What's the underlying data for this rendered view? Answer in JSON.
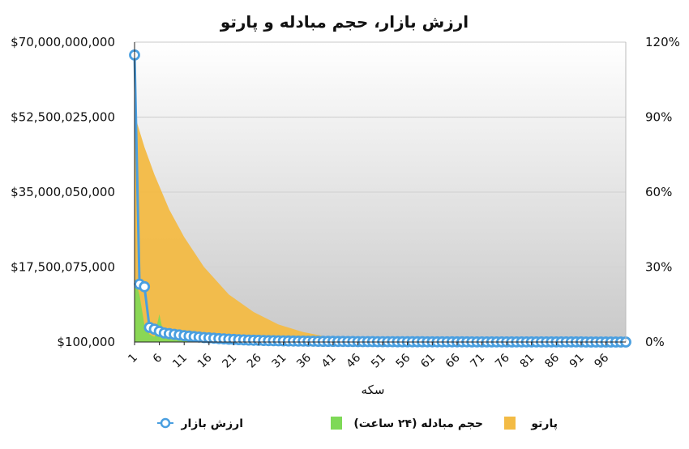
{
  "chart_data": {
    "type": "combo",
    "title": "ارزش بازار، حجم مبادله و پارتو",
    "xlabel": "سکه",
    "x_range": [
      1,
      100
    ],
    "x_tick_labels": [
      "1",
      "6",
      "11",
      "16",
      "21",
      "26",
      "31",
      "36",
      "41",
      "46",
      "51",
      "56",
      "61",
      "66",
      "71",
      "76",
      "81",
      "86",
      "91",
      "96"
    ],
    "y_left": {
      "range": [
        100000,
        70000000000
      ],
      "tick_labels": [
        "$100,000",
        "$17,500,075,000",
        "$35,000,050,000",
        "$52,500,025,000",
        "$70,000,000,000"
      ]
    },
    "y_right": {
      "range": [
        0,
        120
      ],
      "tick_labels": [
        "0%",
        "30%",
        "60%",
        "90%",
        "120%"
      ]
    },
    "grid": true,
    "legend_position": "bottom",
    "series": [
      {
        "name": "ارزش بازار",
        "kind": "line-markers",
        "axis": "left",
        "color": "#4a9fe0",
        "x": [
          1,
          2,
          3,
          4,
          5,
          6,
          7,
          8,
          9,
          10,
          11,
          12,
          13,
          14,
          15,
          16,
          17,
          18,
          19,
          20,
          21,
          22,
          23,
          24,
          25,
          26,
          27,
          28,
          29,
          30,
          31,
          32,
          33,
          34,
          35,
          36,
          37,
          38,
          39,
          40,
          41,
          42,
          43,
          44,
          45,
          46,
          47,
          48,
          49,
          50,
          51,
          52,
          53,
          54,
          55,
          56,
          57,
          58,
          59,
          60,
          61,
          62,
          63,
          64,
          65,
          66,
          67,
          68,
          69,
          70,
          71,
          72,
          73,
          74,
          75,
          76,
          77,
          78,
          79,
          80,
          81,
          82,
          83,
          84,
          85,
          86,
          87,
          88,
          89,
          90,
          91,
          92,
          93,
          94,
          95,
          96,
          97,
          98,
          99,
          100
        ],
        "values": [
          67000000000,
          13500000000,
          12900000000,
          3400000000,
          3000000000,
          2500000000,
          2100000000,
          1950000000,
          1800000000,
          1650000000,
          1500000000,
          1380000000,
          1260000000,
          1150000000,
          1050000000,
          960000000,
          880000000,
          800000000,
          730000000,
          660000000,
          600000000,
          550000000,
          500000000,
          460000000,
          420000000,
          390000000,
          360000000,
          330000000,
          300000000,
          280000000,
          260000000,
          245000000,
          230000000,
          215000000,
          200000000,
          190000000,
          180000000,
          170000000,
          160000000,
          150000000,
          142000000,
          134000000,
          126000000,
          118000000,
          110000000,
          104000000,
          98000000,
          92000000,
          86000000,
          80000000,
          76000000,
          72000000,
          68000000,
          64000000,
          60000000,
          57000000,
          54000000,
          51000000,
          48000000,
          45000000,
          43000000,
          41000000,
          39000000,
          37000000,
          35000000,
          33000000,
          31000000,
          29000000,
          27000000,
          25000000,
          24000000,
          23000000,
          22000000,
          21000000,
          20000000,
          19000000,
          18000000,
          17000000,
          16000000,
          15000000,
          14500000,
          14000000,
          13500000,
          13000000,
          12500000,
          12000000,
          11500000,
          11000000,
          10500000,
          10000000,
          9600000,
          9200000,
          8800000,
          8400000,
          8000000,
          7600000,
          7200000,
          6800000,
          6400000,
          6000000
        ]
      },
      {
        "name": "حجم مبادله (۲۴ ساعت)",
        "kind": "area",
        "axis": "left",
        "color": "#7ed957",
        "x": [
          1,
          2,
          3,
          4,
          5,
          6,
          7,
          8,
          9,
          10,
          11,
          12,
          13,
          14,
          15,
          16,
          17,
          18,
          19,
          20
        ],
        "values": [
          15000000000,
          11000000000,
          4000000000,
          1800000000,
          1200000000,
          6500000000,
          900000000,
          700000000,
          550000000,
          450000000,
          380000000,
          320000000,
          270000000,
          230000000,
          200000000,
          170000000,
          140000000,
          120000000,
          100000000,
          80000000
        ]
      },
      {
        "name": "پارتو",
        "kind": "area",
        "axis": "right",
        "color": "#f3bb45",
        "x": [
          1,
          3,
          5,
          8,
          11,
          15,
          20,
          25,
          30,
          35,
          40,
          45,
          50,
          60,
          70,
          80,
          90,
          100
        ],
        "values": [
          91,
          78,
          67,
          53,
          42,
          30,
          19,
          12,
          7,
          4,
          2,
          1,
          0.5,
          0.2,
          0.1,
          0.05,
          0.02,
          0.01
        ]
      }
    ]
  }
}
